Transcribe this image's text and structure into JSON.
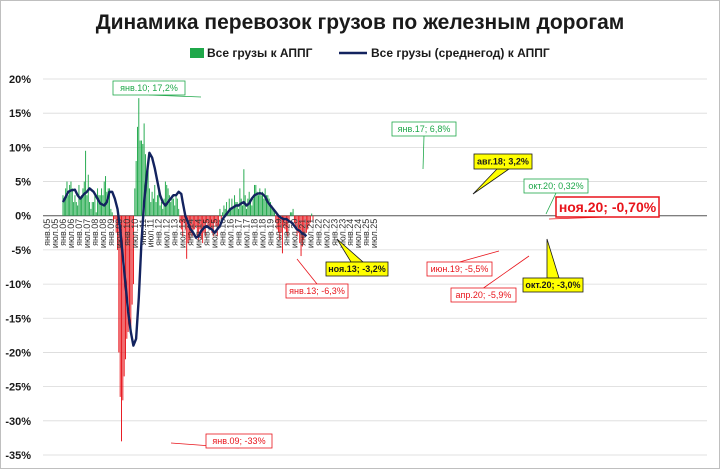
{
  "chart_data": {
    "type": "bar",
    "title": "Динамика перевозок грузов по железным дорогам",
    "ylim": [
      -35,
      20
    ],
    "yticks": [
      "20%",
      "15%",
      "10%",
      "5%",
      "0%",
      "-5%",
      "-10%",
      "-15%",
      "-20%",
      "-25%",
      "-30%",
      "-35%"
    ],
    "ytick_values": [
      20,
      15,
      10,
      5,
      0,
      -5,
      -10,
      -15,
      -20,
      -25,
      -30,
      -35
    ],
    "x_axis_labels": [
      "янв.05",
      "июл.05",
      "янв.06",
      "июл.06",
      "янв.07",
      "июл.07",
      "янв.08",
      "июл.08",
      "янв.09",
      "июл.09",
      "янв.10",
      "июл.10",
      "янв.11",
      "июл.11",
      "янв.12",
      "июл.12",
      "янв.13",
      "июл.13",
      "янв.14",
      "июл.14",
      "янв.15",
      "июл.15",
      "янв.16",
      "июл.16",
      "янв.17",
      "июл.17",
      "янв.18",
      "июл.18",
      "янв.19",
      "июл.19",
      "янв.20",
      "июл.20",
      "янв.21",
      "июл.21",
      "янв.22",
      "июл.22",
      "янв.23",
      "июл.23",
      "янв.24",
      "июл.24",
      "янв.25",
      "июл.25"
    ],
    "grid": true,
    "legend_position": "top",
    "series": [
      {
        "name": "Все грузы к АППГ",
        "type": "bar",
        "color_positive": "#1fa84a",
        "color_negative": "#e8141b",
        "start_month": "янв.06",
        "values": [
          3,
          2.5,
          4,
          5,
          3,
          4.5,
          5,
          4,
          2,
          3,
          2,
          1.5,
          4.5,
          2.5,
          3,
          4,
          5,
          9.5,
          3,
          6,
          2,
          1,
          2,
          2,
          3,
          0.5,
          4,
          3,
          3,
          4,
          3,
          5,
          5.8,
          3.5,
          4,
          4,
          1,
          0.5,
          -1,
          -0.5,
          -2.5,
          -5,
          -20,
          -26.5,
          -33,
          -27,
          -23.5,
          -21,
          -18,
          -17,
          -15.5,
          -16.5,
          -13,
          -10,
          4,
          8,
          13,
          17.2,
          11,
          11,
          10.5,
          13.5,
          9,
          5,
          7,
          4,
          2,
          3.5,
          2.5,
          4.5,
          2,
          3,
          4,
          1.5,
          2,
          1,
          2.5,
          5,
          4.5,
          4,
          3,
          2,
          3,
          2.5,
          1.5,
          3,
          2.5,
          1,
          -1,
          -2,
          -3,
          -1,
          -2,
          -6.3,
          -4,
          -3.5,
          -2.5,
          -3,
          -2,
          -2,
          -1.5,
          -3,
          -3.5,
          -2,
          -3.5,
          -4,
          -2.5,
          -3,
          -1,
          -1.5,
          -2,
          -2,
          -2.5,
          -3,
          -1,
          -1.5,
          -3,
          -2,
          1,
          -0.5,
          0.5,
          1.5,
          1,
          2,
          0.5,
          2.5,
          1,
          2.5,
          1,
          3,
          2,
          2,
          1,
          4,
          2.5,
          1.5,
          6.8,
          3,
          1,
          2.5,
          3.5,
          2,
          1.5,
          2.5,
          4.5,
          4.5,
          3.5,
          3,
          4,
          3,
          3.5,
          2.5,
          4,
          3,
          3,
          2.5,
          2,
          1.5,
          1,
          0.5,
          -1,
          -2,
          -2.5,
          -3.5,
          -2.5,
          -5.5,
          -1.5,
          -2,
          -2.5,
          -3,
          -1,
          0.5,
          0.5,
          1,
          -1,
          -2,
          -3,
          -2.5,
          -4,
          -5.9,
          -4.5,
          -3.5,
          -3,
          -2.5,
          -2,
          -1.5,
          -1,
          0.32,
          -0.7
        ]
      },
      {
        "name": "Все грузы (среднегод) к АППГ",
        "type": "line",
        "color": "#13235f",
        "points": [
          [
            0,
            2
          ],
          [
            4,
            3.5
          ],
          [
            6,
            3.7
          ],
          [
            9,
            3.8
          ],
          [
            11,
            3
          ],
          [
            13,
            2.5
          ],
          [
            16,
            3.2
          ],
          [
            18,
            3.5
          ],
          [
            20,
            4
          ],
          [
            23,
            3.5
          ],
          [
            26,
            2.5
          ],
          [
            28,
            1.8
          ],
          [
            31,
            1.5
          ],
          [
            33,
            2
          ],
          [
            35,
            3.5
          ],
          [
            37,
            3.5
          ],
          [
            39,
            2.5
          ],
          [
            41,
            1
          ],
          [
            43,
            -2
          ],
          [
            45,
            -6
          ],
          [
            47,
            -10
          ],
          [
            49,
            -14
          ],
          [
            51,
            -17
          ],
          [
            53,
            -19
          ],
          [
            55,
            -18
          ],
          [
            57,
            -12
          ],
          [
            59,
            -4
          ],
          [
            61,
            2
          ],
          [
            63,
            6
          ],
          [
            65,
            9.2
          ],
          [
            67,
            8.5
          ],
          [
            69,
            7
          ],
          [
            71,
            5
          ],
          [
            73,
            3
          ],
          [
            75,
            2
          ],
          [
            77,
            1.5
          ],
          [
            79,
            2
          ],
          [
            81,
            2.5
          ],
          [
            83,
            3
          ],
          [
            85,
            3
          ],
          [
            87,
            3.5
          ],
          [
            89,
            3.2
          ],
          [
            90,
            2
          ],
          [
            92,
            0
          ],
          [
            94,
            -1
          ],
          [
            96,
            -2
          ],
          [
            98,
            -2.5
          ],
          [
            100,
            -3.2
          ],
          [
            102,
            -3
          ],
          [
            104,
            -2.2
          ],
          [
            106,
            -1.8
          ],
          [
            108,
            -1.5
          ],
          [
            110,
            -1.8
          ],
          [
            112,
            -2
          ],
          [
            114,
            -2.5
          ],
          [
            116,
            -2
          ],
          [
            118,
            -1.5
          ],
          [
            120,
            -0.5
          ],
          [
            122,
            0
          ],
          [
            124,
            0.5
          ],
          [
            126,
            1
          ],
          [
            128,
            1.2
          ],
          [
            130,
            1.5
          ],
          [
            132,
            1.5
          ],
          [
            134,
            1.8
          ],
          [
            136,
            2
          ],
          [
            138,
            1.5
          ],
          [
            140,
            1.8
          ],
          [
            142,
            2.5
          ],
          [
            144,
            3
          ],
          [
            146,
            3.2
          ],
          [
            148,
            3.3
          ],
          [
            150,
            3.2
          ],
          [
            152,
            2.8
          ],
          [
            154,
            2
          ],
          [
            156,
            1.5
          ],
          [
            158,
            1
          ],
          [
            160,
            0.5
          ],
          [
            162,
            0
          ],
          [
            164,
            -0.3
          ],
          [
            166,
            -0.5
          ],
          [
            168,
            -0.5
          ],
          [
            170,
            -0.8
          ],
          [
            172,
            -1
          ],
          [
            174,
            -1.5
          ],
          [
            176,
            -2
          ],
          [
            178,
            -2.2
          ],
          [
            180,
            -2.6
          ],
          [
            182,
            -2.8
          ],
          [
            183,
            -3
          ]
        ]
      }
    ],
    "annotations": [
      {
        "text": "янв.09; -33%",
        "style": "red"
      },
      {
        "text": "янв.10; 17,2%",
        "style": "green"
      },
      {
        "text": "янв.13; -6,3%",
        "style": "red"
      },
      {
        "text": "ноя.13; -3,2%",
        "style": "yellow"
      },
      {
        "text": "янв.17; 6,8%",
        "style": "green"
      },
      {
        "text": "авг.18; 3,2%",
        "style": "yellow"
      },
      {
        "text": "июн.19; -5,5%",
        "style": "red"
      },
      {
        "text": "апр.20; -5,9%",
        "style": "red"
      },
      {
        "text": "окт.20; -3,0%",
        "style": "yellow"
      },
      {
        "text": "окт.20; 0,32%",
        "style": "green"
      },
      {
        "text": "ноя.20; -0,70%",
        "style": "redbig"
      }
    ]
  }
}
